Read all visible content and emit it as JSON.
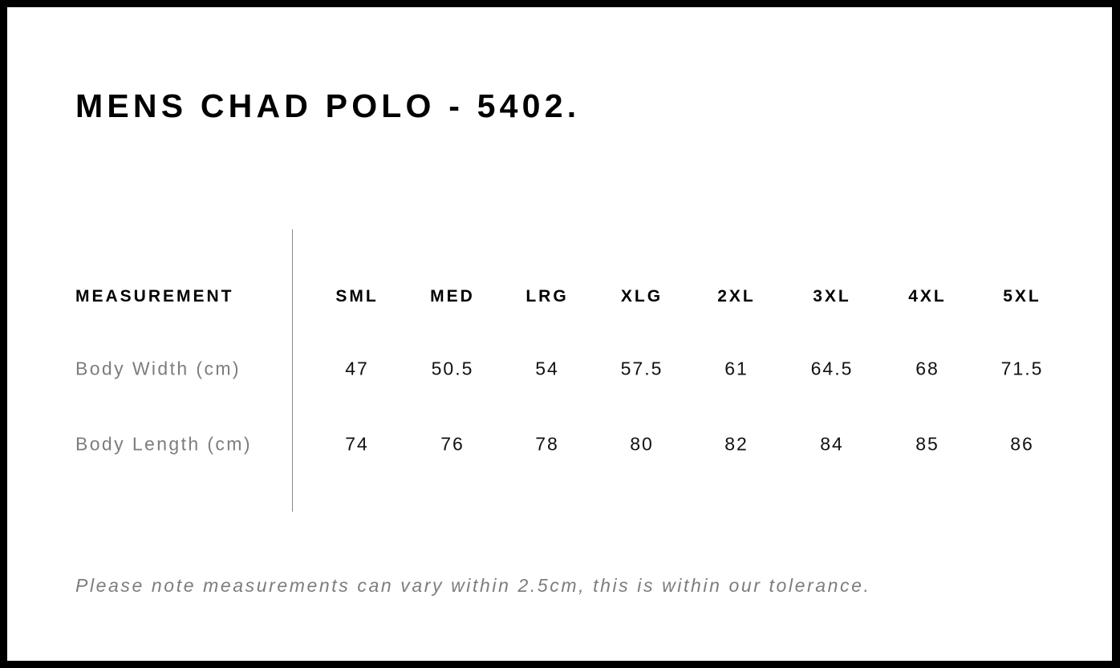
{
  "title": "MENS CHAD POLO - 5402.",
  "table": {
    "header_label": "MEASUREMENT",
    "sizes": [
      "SML",
      "MED",
      "LRG",
      "XLG",
      "2XL",
      "3XL",
      "4XL",
      "5XL"
    ],
    "rows": [
      {
        "label": "Body Width (cm)",
        "values": [
          "47",
          "50.5",
          "54",
          "57.5",
          "61",
          "64.5",
          "68",
          "71.5"
        ]
      },
      {
        "label": "Body Length (cm)",
        "values": [
          "74",
          "76",
          "78",
          "80",
          "82",
          "84",
          "85",
          "86"
        ]
      }
    ]
  },
  "note": "Please note measurements can vary within 2.5cm, this is within our tolerance.",
  "colors": {
    "frame": "#000000",
    "label_gray": "#7d7d7d",
    "divider": "#8a8a8a"
  }
}
